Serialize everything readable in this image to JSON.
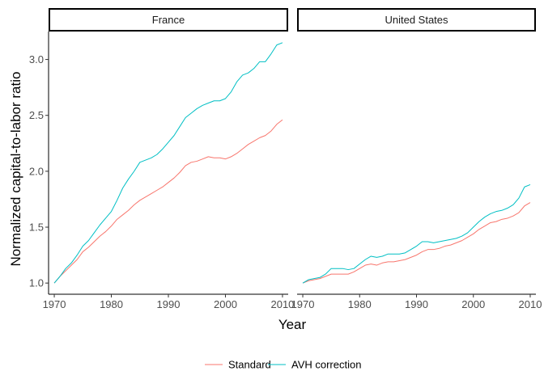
{
  "chart_data": {
    "type": "line",
    "xlabel": "Year",
    "ylabel": "Normalized capital-to-labor ratio",
    "xlim": [
      1969,
      2011
    ],
    "ylim": [
      0.9,
      3.25
    ],
    "x_ticks": [
      1970,
      1980,
      1990,
      2000,
      2010
    ],
    "y_ticks": [
      1.0,
      1.5,
      2.0,
      2.5,
      3.0
    ],
    "y_tick_labels": [
      "1.0",
      "1.5",
      "2.0",
      "2.5",
      "3.0"
    ],
    "grid": false,
    "legend_position": "bottom",
    "colors": {
      "Standard": "#F8766D",
      "AVH correction": "#00BFC4"
    },
    "x": [
      1970,
      1971,
      1972,
      1973,
      1974,
      1975,
      1976,
      1977,
      1978,
      1979,
      1980,
      1981,
      1982,
      1983,
      1984,
      1985,
      1986,
      1987,
      1988,
      1989,
      1990,
      1991,
      1992,
      1993,
      1994,
      1995,
      1996,
      1997,
      1998,
      1999,
      2000,
      2001,
      2002,
      2003,
      2004,
      2005,
      2006,
      2007,
      2008,
      2009,
      2010
    ],
    "panels": [
      {
        "title": "France",
        "series": [
          {
            "name": "Standard",
            "values": [
              1.0,
              1.06,
              1.11,
              1.16,
              1.21,
              1.28,
              1.32,
              1.37,
              1.42,
              1.46,
              1.51,
              1.57,
              1.61,
              1.65,
              1.7,
              1.74,
              1.77,
              1.8,
              1.83,
              1.86,
              1.9,
              1.94,
              1.99,
              2.05,
              2.08,
              2.09,
              2.11,
              2.13,
              2.12,
              2.12,
              2.11,
              2.13,
              2.16,
              2.2,
              2.24,
              2.27,
              2.3,
              2.32,
              2.36,
              2.42,
              2.46
            ]
          },
          {
            "name": "AVH correction",
            "values": [
              1.0,
              1.06,
              1.13,
              1.18,
              1.25,
              1.33,
              1.38,
              1.45,
              1.52,
              1.58,
              1.64,
              1.74,
              1.85,
              1.93,
              2.0,
              2.08,
              2.1,
              2.12,
              2.15,
              2.2,
              2.26,
              2.32,
              2.4,
              2.48,
              2.52,
              2.56,
              2.59,
              2.61,
              2.63,
              2.63,
              2.65,
              2.71,
              2.8,
              2.86,
              2.88,
              2.92,
              2.98,
              2.98,
              3.05,
              3.13,
              3.15
            ]
          }
        ]
      },
      {
        "title": "United States",
        "series": [
          {
            "name": "Standard",
            "values": [
              1.0,
              1.02,
              1.03,
              1.04,
              1.06,
              1.08,
              1.08,
              1.08,
              1.08,
              1.1,
              1.13,
              1.16,
              1.17,
              1.16,
              1.18,
              1.19,
              1.19,
              1.2,
              1.21,
              1.23,
              1.25,
              1.28,
              1.3,
              1.3,
              1.31,
              1.33,
              1.34,
              1.36,
              1.38,
              1.41,
              1.44,
              1.48,
              1.51,
              1.54,
              1.55,
              1.57,
              1.58,
              1.6,
              1.63,
              1.69,
              1.72
            ]
          },
          {
            "name": "AVH correction",
            "values": [
              1.0,
              1.03,
              1.04,
              1.05,
              1.08,
              1.13,
              1.13,
              1.13,
              1.12,
              1.13,
              1.17,
              1.21,
              1.24,
              1.23,
              1.24,
              1.26,
              1.26,
              1.26,
              1.27,
              1.3,
              1.33,
              1.37,
              1.37,
              1.36,
              1.37,
              1.38,
              1.39,
              1.4,
              1.42,
              1.45,
              1.5,
              1.55,
              1.59,
              1.62,
              1.64,
              1.65,
              1.67,
              1.7,
              1.76,
              1.86,
              1.88
            ]
          }
        ]
      }
    ]
  }
}
